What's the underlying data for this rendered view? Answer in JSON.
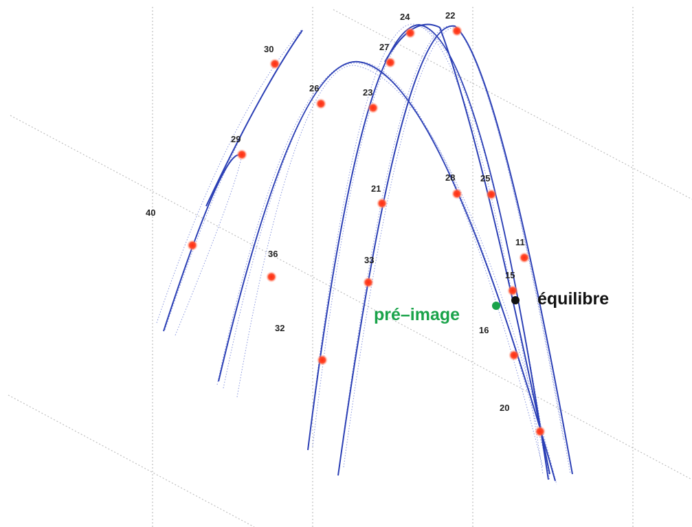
{
  "colors": {
    "curve": "#2b3fb5",
    "curve_light": "#6f7fd6",
    "point": "#ff3b1f",
    "point_glow": "#ffb0a0",
    "preimage": "#1aa34a",
    "equilibre": "#111111",
    "grid": "#bdbdbd"
  },
  "labels": {
    "preimage": "pré–image",
    "equilibre": "équilibre"
  },
  "point_labels": [
    "30",
    "24",
    "22",
    "27",
    "26",
    "23",
    "29",
    "21",
    "28",
    "25",
    "40",
    "11",
    "36",
    "33",
    "15",
    "16",
    "32",
    "20"
  ]
}
